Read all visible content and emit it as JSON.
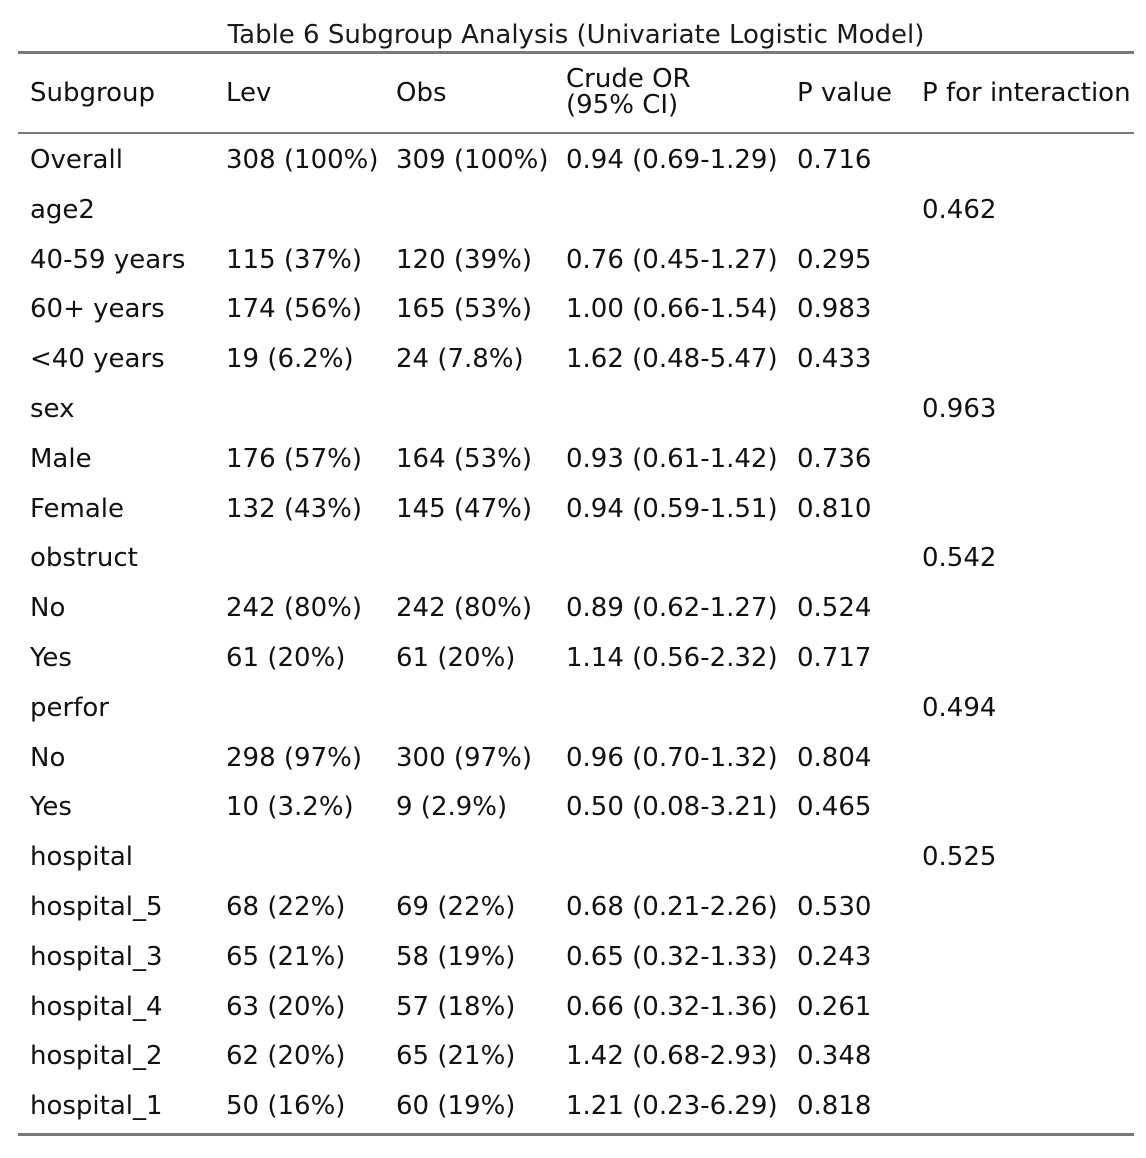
{
  "caption": "Table 6 Subgroup Analysis (Univariate Logistic Model)",
  "table": {
    "headers": [
      "Subgroup",
      "Lev",
      "Obs",
      "Crude OR (95% CI)",
      "P value",
      "P for interaction"
    ],
    "rows": [
      [
        "Overall",
        "308 (100%)",
        "309 (100%)",
        "0.94 (0.69-1.29)",
        "0.716",
        ""
      ],
      [
        "age2",
        "",
        "",
        "",
        "",
        "0.462"
      ],
      [
        "40-59 years",
        "115 (37%)",
        "120 (39%)",
        "0.76 (0.45-1.27)",
        "0.295",
        ""
      ],
      [
        "60+ years",
        "174 (56%)",
        "165 (53%)",
        "1.00 (0.66-1.54)",
        "0.983",
        ""
      ],
      [
        "<40 years",
        "19 (6.2%)",
        "24 (7.8%)",
        "1.62 (0.48-5.47)",
        "0.433",
        ""
      ],
      [
        "sex",
        "",
        "",
        "",
        "",
        "0.963"
      ],
      [
        "Male",
        "176 (57%)",
        "164 (53%)",
        "0.93 (0.61-1.42)",
        "0.736",
        ""
      ],
      [
        "Female",
        "132 (43%)",
        "145 (47%)",
        "0.94 (0.59-1.51)",
        "0.810",
        ""
      ],
      [
        "obstruct",
        "",
        "",
        "",
        "",
        "0.542"
      ],
      [
        "No",
        "242 (80%)",
        "242 (80%)",
        "0.89 (0.62-1.27)",
        "0.524",
        ""
      ],
      [
        "Yes",
        "61 (20%)",
        "61 (20%)",
        "1.14 (0.56-2.32)",
        "0.717",
        ""
      ],
      [
        "perfor",
        "",
        "",
        "",
        "",
        "0.494"
      ],
      [
        "No",
        "298 (97%)",
        "300 (97%)",
        "0.96 (0.70-1.32)",
        "0.804",
        ""
      ],
      [
        "Yes",
        "10 (3.2%)",
        "9 (2.9%)",
        "0.50 (0.08-3.21)",
        "0.465",
        ""
      ],
      [
        "hospital",
        "",
        "",
        "",
        "",
        "0.525"
      ],
      [
        "hospital_5",
        "68 (22%)",
        "69 (22%)",
        "0.68 (0.21-2.26)",
        "0.530",
        ""
      ],
      [
        "hospital_3",
        "65 (21%)",
        "58 (19%)",
        "0.65 (0.32-1.33)",
        "0.243",
        ""
      ],
      [
        "hospital_4",
        "63 (20%)",
        "57 (18%)",
        "0.66 (0.32-1.36)",
        "0.261",
        ""
      ],
      [
        "hospital_2",
        "62 (20%)",
        "65 (21%)",
        "1.42 (0.68-2.93)",
        "0.348",
        ""
      ],
      [
        "hospital_1",
        "50 (16%)",
        "60 (19%)",
        "1.21 (0.23-6.29)",
        "0.818",
        ""
      ]
    ]
  }
}
